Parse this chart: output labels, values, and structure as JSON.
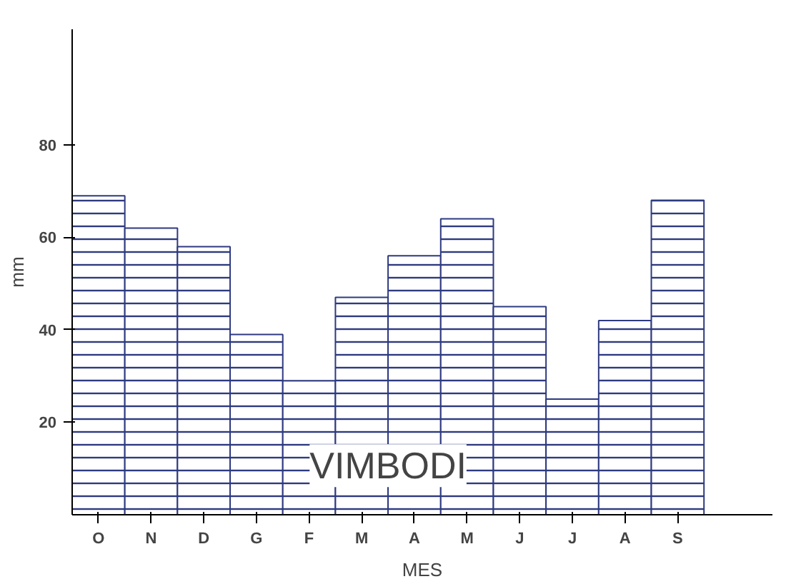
{
  "chart_data": {
    "type": "bar",
    "ylabel": "mm",
    "xlabel": "MES",
    "categories": [
      "O",
      "N",
      "D",
      "G",
      "F",
      "M",
      "A",
      "M",
      "J",
      "J",
      "A",
      "S"
    ],
    "values": [
      69,
      62,
      58,
      39,
      29,
      47,
      56,
      64,
      45,
      25,
      42,
      68
    ],
    "color": "#2e3a80",
    "ylim": [
      0,
      105
    ],
    "yticks": [
      20,
      40,
      60,
      80
    ],
    "grid": false,
    "annotations": [
      "VIMBODI"
    ]
  }
}
